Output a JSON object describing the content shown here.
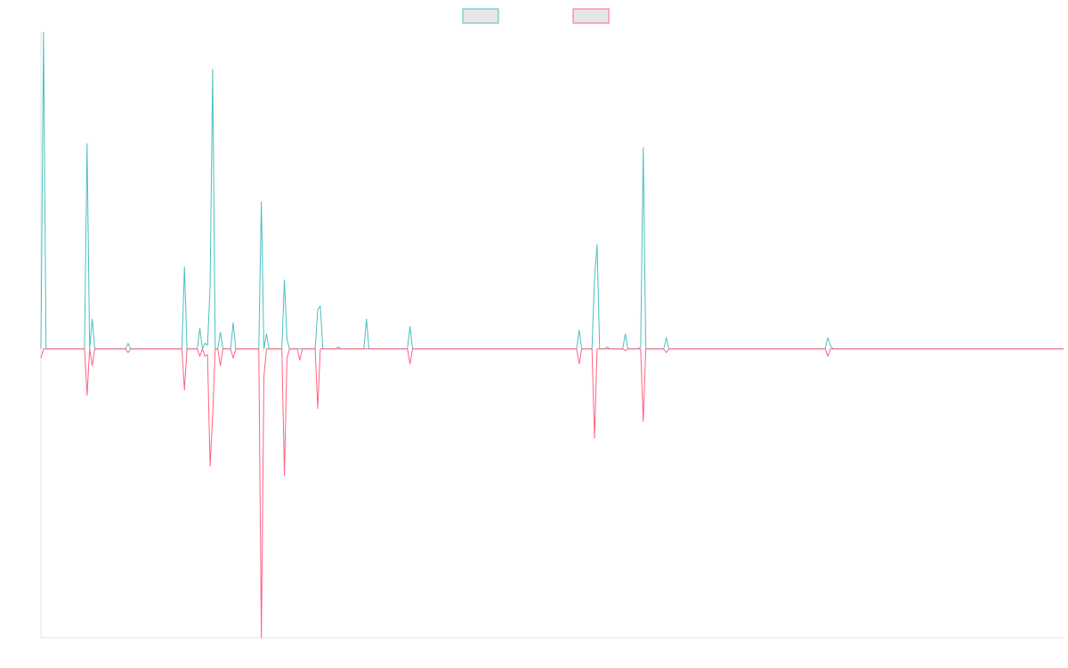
{
  "chart_data": {
    "type": "line",
    "x_count": 400,
    "y_min": -1.55,
    "y_max": 1.7,
    "legend_position": "top-center",
    "series": [
      {
        "color": "#4bc0c0",
        "swatch_fill": "#e6e6e6",
        "values": [
          0,
          1.7,
          0,
          0,
          0,
          0,
          0,
          0,
          0,
          0,
          0,
          0,
          0,
          0,
          0,
          0,
          0,
          0,
          1.1,
          0,
          0.16,
          0,
          0,
          0,
          0,
          0,
          0,
          0,
          0,
          0,
          0,
          0,
          0,
          0,
          0.03,
          0,
          0,
          0,
          0,
          0,
          0,
          0,
          0,
          0,
          0,
          0,
          0,
          0,
          0,
          0,
          0,
          0,
          0,
          0,
          0,
          0,
          0.44,
          0,
          0,
          0,
          0,
          0,
          0.11,
          0,
          0.03,
          0.02,
          0.33,
          1.5,
          0,
          0,
          0.09,
          0,
          0,
          0,
          0,
          0.14,
          0,
          0,
          0,
          0,
          0,
          0,
          0,
          0,
          0,
          0,
          0.79,
          0,
          0.08,
          0,
          0,
          0,
          0,
          0,
          0,
          0.37,
          0.05,
          0,
          0,
          0,
          0,
          0,
          0,
          0,
          0,
          0,
          0,
          0,
          0.21,
          0.23,
          0,
          0,
          0,
          0,
          0,
          0,
          0.01,
          0,
          0,
          0,
          0,
          0,
          0,
          0,
          0,
          0,
          0,
          0.16,
          0,
          0,
          0,
          0,
          0,
          0,
          0,
          0,
          0,
          0,
          0,
          0,
          0,
          0,
          0,
          0,
          0.12,
          0,
          0,
          0,
          0,
          0,
          0,
          0,
          0,
          0,
          0,
          0,
          0,
          0,
          0,
          0,
          0,
          0,
          0,
          0,
          0,
          0,
          0,
          0,
          0,
          0,
          0,
          0,
          0,
          0,
          0,
          0,
          0,
          0,
          0,
          0,
          0,
          0,
          0,
          0,
          0,
          0,
          0,
          0,
          0,
          0,
          0,
          0,
          0,
          0,
          0,
          0,
          0,
          0,
          0,
          0,
          0,
          0,
          0,
          0,
          0,
          0,
          0,
          0,
          0,
          0,
          0.1,
          0,
          0,
          0,
          0,
          0,
          0.38,
          0.56,
          0,
          0,
          0,
          0.01,
          0,
          0,
          0,
          0,
          0,
          0,
          0.08,
          0,
          0,
          0,
          0,
          0,
          0.01,
          1.08,
          0,
          0,
          0,
          0,
          0,
          0,
          0,
          0,
          0.06,
          0,
          0,
          0,
          0,
          0,
          0,
          0,
          0,
          0,
          0,
          0,
          0,
          0,
          0,
          0,
          0,
          0,
          0,
          0,
          0,
          0,
          0,
          0,
          0,
          0,
          0,
          0,
          0,
          0,
          0,
          0,
          0,
          0,
          0,
          0,
          0,
          0,
          0,
          0,
          0,
          0,
          0,
          0,
          0,
          0,
          0,
          0,
          0,
          0,
          0,
          0,
          0,
          0,
          0,
          0,
          0,
          0,
          0,
          0,
          0,
          0,
          0,
          0.06,
          0.02,
          0,
          0,
          0,
          0,
          0,
          0,
          0,
          0,
          0,
          0,
          0,
          0,
          0,
          0,
          0,
          0,
          0,
          0,
          0,
          0,
          0,
          0,
          0,
          0,
          0,
          0,
          0,
          0,
          0,
          0,
          0,
          0,
          0,
          0,
          0,
          0,
          0,
          0,
          0,
          0,
          0,
          0,
          0,
          0,
          0,
          0,
          0,
          0,
          0,
          0,
          0,
          0,
          0,
          0,
          0,
          0,
          0,
          0,
          0,
          0,
          0,
          0,
          0,
          0,
          0,
          0,
          0,
          0,
          0,
          0,
          0,
          0,
          0,
          0,
          0,
          0,
          0,
          0,
          0,
          0,
          0,
          0,
          0,
          0,
          0,
          0,
          0,
          0,
          0,
          0,
          0
        ]
      },
      {
        "color": "#ff6384",
        "swatch_fill": "#e6e6e6",
        "values": [
          -0.05,
          0,
          0,
          0,
          0,
          0,
          0,
          0,
          0,
          0,
          0,
          0,
          0,
          0,
          0,
          0,
          0,
          0,
          -0.25,
          0,
          -0.09,
          0,
          0,
          0,
          0,
          0,
          0,
          0,
          0,
          0,
          0,
          0,
          0,
          0,
          -0.02,
          0,
          0,
          0,
          0,
          0,
          0,
          0,
          0,
          0,
          0,
          0,
          0,
          0,
          0,
          0,
          0,
          0,
          0,
          0,
          0,
          0,
          -0.22,
          0,
          0,
          0,
          0,
          0,
          -0.04,
          0,
          -0.04,
          -0.03,
          -0.63,
          -0.36,
          0,
          0,
          -0.09,
          0,
          0,
          0,
          0,
          -0.05,
          0,
          0,
          0,
          0,
          0,
          0,
          0,
          0,
          0,
          0,
          -1.55,
          -0.15,
          0,
          0,
          0,
          0,
          0,
          0,
          0,
          -0.68,
          -0.05,
          0,
          0,
          0,
          0,
          -0.06,
          0,
          0,
          0,
          0,
          0,
          0,
          -0.32,
          0,
          0,
          0,
          0,
          0,
          0,
          0,
          0,
          0,
          0,
          0,
          0,
          0,
          0,
          0,
          0,
          0,
          0,
          0,
          0,
          0,
          0,
          0,
          0,
          0,
          0,
          0,
          0,
          0,
          0,
          0,
          0,
          0,
          0,
          0,
          -0.08,
          0,
          0,
          0,
          0,
          0,
          0,
          0,
          0,
          0,
          0,
          0,
          0,
          0,
          0,
          0,
          0,
          0,
          0,
          0,
          0,
          0,
          0,
          0,
          0,
          0,
          0,
          0,
          0,
          0,
          0,
          0,
          0,
          0,
          0,
          0,
          0,
          0,
          0,
          0,
          0,
          0,
          0,
          0,
          0,
          0,
          0,
          0,
          0,
          0,
          0,
          0,
          0,
          0,
          0,
          0,
          0,
          0,
          0,
          0,
          0,
          0,
          0,
          0,
          0,
          0,
          -0.08,
          0,
          0,
          0,
          0,
          0,
          -0.48,
          0,
          0,
          0,
          0,
          0,
          0,
          0,
          0,
          0,
          0,
          0,
          -0.01,
          0,
          0,
          0,
          0,
          0,
          0,
          -0.39,
          0,
          0,
          0,
          0,
          0,
          0,
          0,
          0,
          -0.02,
          0,
          0,
          0,
          0,
          0,
          0,
          0,
          0,
          0,
          0,
          0,
          0,
          0,
          0,
          0,
          0,
          0,
          0,
          0,
          0,
          0,
          0,
          0,
          0,
          0,
          0,
          0,
          0,
          0,
          0,
          0,
          0,
          0,
          0,
          0,
          0,
          0,
          0,
          0,
          0,
          0,
          0,
          0,
          0,
          0,
          0,
          0,
          0,
          0,
          0,
          0,
          0,
          0,
          0,
          0,
          0,
          0,
          0,
          0,
          0,
          0,
          0,
          -0.04,
          0,
          0,
          0,
          0,
          0,
          0,
          0,
          0,
          0,
          0,
          0,
          0,
          0,
          0,
          0,
          0,
          0,
          0,
          0,
          0,
          0,
          0,
          0,
          0,
          0,
          0,
          0,
          0,
          0,
          0,
          0,
          0,
          0,
          0,
          0,
          0,
          0,
          0,
          0,
          0,
          0,
          0,
          0,
          0,
          0,
          0,
          0,
          0,
          0,
          0,
          0,
          0,
          0,
          0,
          0,
          0,
          0,
          0,
          0,
          0,
          0,
          0,
          0,
          0,
          0,
          0,
          0,
          0,
          0,
          0,
          0,
          0,
          0,
          0,
          0,
          0,
          0,
          0,
          0,
          0,
          0,
          0,
          0,
          0,
          0,
          0,
          0,
          0,
          0,
          0,
          0,
          0
        ]
      }
    ]
  }
}
